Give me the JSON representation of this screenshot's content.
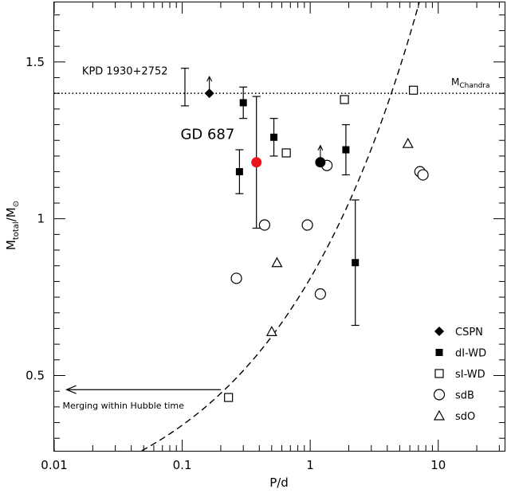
{
  "chart_data": {
    "type": "scatter",
    "xlabel": "P/d",
    "ylabel_main": "M",
    "ylabel_sub": "total",
    "ylabel_tail": "/M",
    "ylabel_sym": "⊙",
    "x_scale": "log",
    "xlim": [
      0.01,
      33
    ],
    "ylim": [
      0.26,
      1.69
    ],
    "x_ticks": [
      {
        "v": 0.01,
        "label": "0.01"
      },
      {
        "v": 0.1,
        "label": "0.1"
      },
      {
        "v": 1,
        "label": "1"
      },
      {
        "v": 10,
        "label": "10"
      }
    ],
    "y_ticks": [
      {
        "v": 0.5,
        "label": "0.5"
      },
      {
        "v": 1.0,
        "label": "1"
      },
      {
        "v": 1.5,
        "label": "1.5"
      }
    ],
    "chandra": {
      "value": 1.4,
      "label_main": "M",
      "label_sub": "Chandra"
    },
    "merging_curve_c": 0.81,
    "merging_arrow": {
      "label": "Merging within Hubble time",
      "x_from": 0.2,
      "x_to": 0.0125,
      "y": 0.455
    },
    "annotations": [
      {
        "text": "KPD 1930+2752",
        "x": 0.0165,
        "y": 1.47
      },
      {
        "text": "GD 687",
        "x": 0.097,
        "y": 1.27
      }
    ],
    "series": [
      {
        "name": "CSPN",
        "marker": "diamond-filled",
        "points": [
          {
            "x": 0.163,
            "y": 1.4,
            "up": true
          }
        ]
      },
      {
        "name": "dI-WD",
        "marker": "square-filled",
        "points": [
          {
            "x": 0.28,
            "y": 1.15,
            "err": [
              1.08,
              1.22
            ]
          },
          {
            "x": 0.3,
            "y": 1.37,
            "err": [
              1.32,
              1.42
            ]
          },
          {
            "x": 0.52,
            "y": 1.26,
            "err": [
              1.2,
              1.32
            ]
          },
          {
            "x": 1.9,
            "y": 1.22,
            "err": [
              1.14,
              1.3
            ]
          },
          {
            "x": 2.25,
            "y": 0.86,
            "err": [
              0.66,
              1.06
            ]
          }
        ]
      },
      {
        "name": "sI-WD",
        "marker": "square-open",
        "points": [
          {
            "x": 0.23,
            "y": 0.43
          },
          {
            "x": 0.65,
            "y": 1.21
          },
          {
            "x": 1.85,
            "y": 1.38
          },
          {
            "x": 6.4,
            "y": 1.41
          }
        ]
      },
      {
        "name": "sdB",
        "marker": "circle-open",
        "points": [
          {
            "x": 0.265,
            "y": 0.81
          },
          {
            "x": 0.44,
            "y": 0.98
          },
          {
            "x": 0.95,
            "y": 0.98
          },
          {
            "x": 1.2,
            "y": 0.76
          },
          {
            "x": 1.35,
            "y": 1.17
          },
          {
            "x": 7.2,
            "y": 1.15
          },
          {
            "x": 7.6,
            "y": 1.14
          }
        ]
      },
      {
        "name": "sdO",
        "marker": "triangle-open",
        "points": [
          {
            "x": 0.5,
            "y": 0.64
          },
          {
            "x": 0.55,
            "y": 0.86
          },
          {
            "x": 5.8,
            "y": 1.24
          }
        ]
      }
    ],
    "extra_points": [
      {
        "marker": "circle-filled",
        "color": "#e8141e",
        "x": 0.38,
        "y": 1.18,
        "err": [
          0.97,
          1.39
        ]
      },
      {
        "marker": "circle-filled",
        "color": "#000000",
        "x": 1.2,
        "y": 1.18,
        "up": true
      }
    ],
    "extra_errorbars": [
      {
        "x": 0.105,
        "err": [
          1.36,
          1.48
        ]
      }
    ],
    "legend_position": "lower-right",
    "grid": false
  }
}
